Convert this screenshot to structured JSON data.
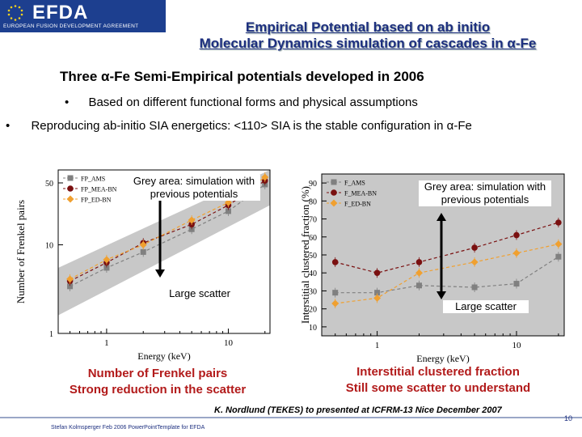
{
  "logo": {
    "text": "EFDA",
    "subtitle": "EUROPEAN FUSION DEVELOPMENT AGREEMENT",
    "stars_icon": "eu-stars-icon"
  },
  "title": {
    "line1": "Empirical Potential based on ab initio",
    "line2": "Molecular Dynamics simulation of cascades in α-Fe"
  },
  "subheading": "Three α-Fe Semi-Empirical potentials developed in 2006",
  "bullets": [
    "Based on different functional forms and physical assumptions",
    "Reproducing ab-initio SIA energetics: <110> SIA is the stable configuration in α-Fe"
  ],
  "bullet_symbol": "•",
  "left_plot": {
    "annotation": "Grey area: simulation with previous potentials",
    "scatter_note": "Large scatter",
    "caption_line1": "Number of Frenkel pairs",
    "caption_line2": "Strong reduction in the scatter"
  },
  "right_plot": {
    "annotation": "Grey area: simulation with previous potentials",
    "scatter_note": "Large scatter",
    "caption_line1": "Interstitial clustered fraction",
    "caption_line2": "Still some scatter to understand"
  },
  "credit": "K. Nordlund (TEKES) to presented at ICFRM-13 Nice December 2007",
  "footer": "Stefan Kolmsperger Feb 2006 PowerPointTemplate for EFDA",
  "page_number": "10",
  "colors": {
    "title_blue": "#1d2f7f",
    "caption_red": "#b21a1a",
    "series_dark": "#7a1010",
    "series_orange": "#f0a030",
    "series_grey": "#808080",
    "band": "#c8c8c8"
  },
  "chart_data": [
    {
      "type": "line",
      "xlabel": "Energy (keV)",
      "ylabel": "Number of Frenkel pairs",
      "xscale": "log",
      "yscale": "log",
      "xlim": [
        0.4,
        22
      ],
      "ylim": [
        1,
        70
      ],
      "x_ticks": [
        "1",
        "10"
      ],
      "y_ticks": [
        "1",
        "10",
        "50"
      ],
      "legend": [
        "FP_AMS",
        "FP_MEA-BN",
        "FP_ED-BN"
      ],
      "legend_placement": "top-left",
      "series": [
        {
          "name": "FP_AMS",
          "x": [
            0.5,
            1,
            2,
            5,
            10,
            20
          ],
          "y": [
            3.4,
            5.5,
            8.3,
            15,
            24,
            48
          ]
        },
        {
          "name": "FP_MEA-BN",
          "x": [
            0.5,
            1,
            2,
            5,
            10,
            20
          ],
          "y": [
            3.9,
            6.3,
            10.5,
            17,
            28,
            53
          ]
        },
        {
          "name": "FP_ED-BN",
          "x": [
            0.5,
            1,
            2,
            5,
            10,
            20
          ],
          "y": [
            4.1,
            6.8,
            10,
            19,
            30,
            58
          ]
        }
      ]
    },
    {
      "type": "line",
      "xlabel": "Energy (keV)",
      "ylabel": "Interstitial clustered fraction (%)",
      "xscale": "log",
      "xlim": [
        0.4,
        22
      ],
      "ylim": [
        5,
        95
      ],
      "x_ticks": [
        "1",
        "10"
      ],
      "y_ticks": [
        "10",
        "20",
        "30",
        "40",
        "50",
        "60",
        "70",
        "80",
        "90"
      ],
      "legend": [
        "F_AMS",
        "F_MEA-BN",
        "F_ED-BN"
      ],
      "legend_placement": "top-left",
      "series": [
        {
          "name": "F_AMS",
          "x": [
            0.5,
            1,
            2,
            5,
            10,
            20
          ],
          "y": [
            29,
            29,
            33,
            32,
            34,
            49
          ]
        },
        {
          "name": "F_MEA-BN",
          "x": [
            0.5,
            1,
            2,
            5,
            10,
            20
          ],
          "y": [
            46,
            40,
            46,
            54,
            61,
            68
          ]
        },
        {
          "name": "F_ED-BN",
          "x": [
            0.5,
            1,
            2,
            5,
            10,
            20
          ],
          "y": [
            23,
            26,
            40,
            46,
            51,
            56
          ]
        }
      ]
    }
  ]
}
